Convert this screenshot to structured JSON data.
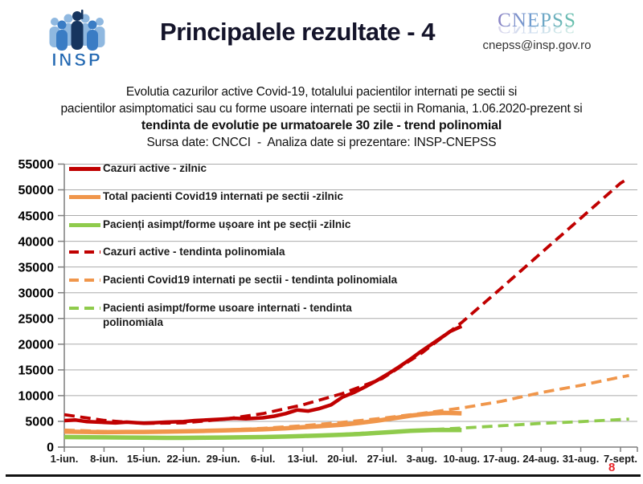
{
  "header": {
    "logo_text": "INSP",
    "title": "Principalele rezultate - 4",
    "org_logo_text": "CNEPSS",
    "org_email": "cnepss@insp.gov.ro"
  },
  "subtitle": {
    "line1": "Evolutia cazurilor active Covid-19, totalului pacientilor internati pe sectii si",
    "line2": "pacientilor asimptomatici sau cu forme usoare internati pe sectii in Romania, 1.06.2020-prezent si",
    "line3": "tendinta de evolutie pe urmatoarele 30 zile - trend polinomial",
    "line4": "Sursa date: CNCCI  -  Analiza date si prezentare: INSP-CNEPSS"
  },
  "page_number": "8",
  "chart_data": {
    "type": "line",
    "title": "",
    "xlabel": "",
    "ylabel": "",
    "ylim": [
      0,
      55000
    ],
    "grid": true,
    "legend_position": "inside-top-left",
    "y_ticks": [
      0,
      5000,
      10000,
      15000,
      20000,
      25000,
      30000,
      35000,
      40000,
      45000,
      50000,
      55000
    ],
    "x_ticks": [
      "1-iun.",
      "8-iun.",
      "15-iun.",
      "22-iun.",
      "29-iun.",
      "6-iul.",
      "13-iul.",
      "20-iul.",
      "27-iul.",
      "3-aug.",
      "10-aug.",
      "17-aug.",
      "24-aug.",
      "31-aug.",
      "7-sept."
    ],
    "x_tick_interval_days": 7,
    "series": [
      {
        "name": "Cazuri active - zilnic",
        "color": "#C00000",
        "style": "solid",
        "width": 4.5,
        "points": [
          [
            0,
            5150
          ],
          [
            2,
            5250
          ],
          [
            4,
            4950
          ],
          [
            7,
            4800
          ],
          [
            9,
            4700
          ],
          [
            11,
            4850
          ],
          [
            14,
            4650
          ],
          [
            16,
            4750
          ],
          [
            18,
            4850
          ],
          [
            21,
            4950
          ],
          [
            23,
            5150
          ],
          [
            25,
            5250
          ],
          [
            28,
            5450
          ],
          [
            30,
            5600
          ],
          [
            32,
            5500
          ],
          [
            35,
            5700
          ],
          [
            37,
            6000
          ],
          [
            39,
            6500
          ],
          [
            41,
            7200
          ],
          [
            43,
            7000
          ],
          [
            45,
            7500
          ],
          [
            47,
            8200
          ],
          [
            49,
            9700
          ],
          [
            51,
            10600
          ],
          [
            53,
            11700
          ],
          [
            55,
            12900
          ],
          [
            57,
            14200
          ],
          [
            59,
            15600
          ],
          [
            61,
            17100
          ],
          [
            63,
            18700
          ],
          [
            65,
            20200
          ],
          [
            67,
            21700
          ],
          [
            68,
            22500
          ],
          [
            70,
            23500
          ]
        ]
      },
      {
        "name": "Total pacienti Covid19 internati pe sectii -zilnic",
        "color": "#F0964B",
        "style": "solid",
        "width": 5.5,
        "points": [
          [
            0,
            3000
          ],
          [
            4,
            2950
          ],
          [
            7,
            2900
          ],
          [
            11,
            2950
          ],
          [
            14,
            2950
          ],
          [
            18,
            3000
          ],
          [
            21,
            3050
          ],
          [
            25,
            3150
          ],
          [
            28,
            3250
          ],
          [
            32,
            3350
          ],
          [
            35,
            3450
          ],
          [
            39,
            3650
          ],
          [
            42,
            3850
          ],
          [
            45,
            4050
          ],
          [
            49,
            4350
          ],
          [
            52,
            4700
          ],
          [
            55,
            5100
          ],
          [
            58,
            5600
          ],
          [
            61,
            6100
          ],
          [
            63,
            6350
          ],
          [
            65,
            6550
          ],
          [
            67,
            6650
          ],
          [
            69,
            6600
          ],
          [
            70,
            6550
          ]
        ]
      },
      {
        "name": "Pacienți asimpt/forme ușoare int pe secții -zilnic",
        "color": "#8FCB4C",
        "style": "solid",
        "width": 5.5,
        "points": [
          [
            0,
            1950
          ],
          [
            4,
            1900
          ],
          [
            7,
            1880
          ],
          [
            11,
            1850
          ],
          [
            14,
            1830
          ],
          [
            18,
            1800
          ],
          [
            21,
            1800
          ],
          [
            25,
            1820
          ],
          [
            28,
            1850
          ],
          [
            32,
            1900
          ],
          [
            35,
            1950
          ],
          [
            39,
            2050
          ],
          [
            42,
            2150
          ],
          [
            45,
            2250
          ],
          [
            49,
            2400
          ],
          [
            52,
            2550
          ],
          [
            55,
            2750
          ],
          [
            58,
            2950
          ],
          [
            61,
            3150
          ],
          [
            63,
            3250
          ],
          [
            65,
            3300
          ],
          [
            67,
            3320
          ],
          [
            70,
            3300
          ]
        ]
      },
      {
        "name": "Cazuri active - tendinta polinomiala",
        "color": "#C00000",
        "style": "dashed",
        "width": 3.8,
        "points": [
          [
            0,
            6300
          ],
          [
            7,
            5200
          ],
          [
            14,
            4600
          ],
          [
            21,
            4700
          ],
          [
            28,
            5400
          ],
          [
            35,
            6500
          ],
          [
            42,
            8200
          ],
          [
            49,
            10400
          ],
          [
            56,
            13300
          ],
          [
            63,
            18300
          ],
          [
            70,
            24200
          ],
          [
            77,
            30900
          ],
          [
            84,
            37700
          ],
          [
            91,
            44500
          ],
          [
            98,
            51300
          ],
          [
            99.5,
            52300
          ]
        ]
      },
      {
        "name": "Pacienti Covid19 internati pe sectii - tendinta polinomiala",
        "color": "#F0964B",
        "style": "dashed",
        "width": 3.8,
        "points": [
          [
            0,
            3300
          ],
          [
            7,
            3050
          ],
          [
            14,
            2950
          ],
          [
            21,
            3050
          ],
          [
            28,
            3300
          ],
          [
            35,
            3650
          ],
          [
            42,
            4150
          ],
          [
            49,
            4800
          ],
          [
            56,
            5600
          ],
          [
            63,
            6550
          ],
          [
            70,
            7600
          ],
          [
            77,
            8900
          ],
          [
            84,
            10600
          ],
          [
            91,
            12000
          ],
          [
            98,
            13600
          ],
          [
            99.5,
            13900
          ]
        ]
      },
      {
        "name": "Pacienti asimpt/forme usoare internati - tendinta polinomiala",
        "color": "#8FCB4C",
        "style": "dashed",
        "width": 3.8,
        "points": [
          [
            0,
            2050
          ],
          [
            7,
            1920
          ],
          [
            14,
            1850
          ],
          [
            21,
            1830
          ],
          [
            28,
            1880
          ],
          [
            35,
            2000
          ],
          [
            42,
            2200
          ],
          [
            49,
            2500
          ],
          [
            56,
            2900
          ],
          [
            63,
            3300
          ],
          [
            70,
            3700
          ],
          [
            77,
            4150
          ],
          [
            84,
            4600
          ],
          [
            91,
            4950
          ],
          [
            98,
            5350
          ],
          [
            99.5,
            5450
          ]
        ]
      }
    ]
  }
}
